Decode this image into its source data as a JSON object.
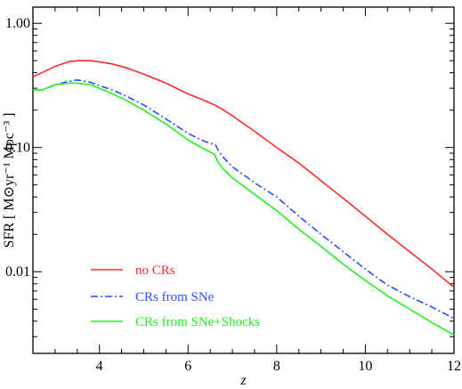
{
  "chart_data": {
    "type": "line",
    "title": "",
    "xlabel": "z",
    "ylabel": "SFR  [ M⊙yr⁻¹ Mpc⁻³ ]",
    "xlim": [
      2.5,
      12
    ],
    "ylim": [
      0.0022,
      1.35
    ],
    "y_scale": "log",
    "grid": false,
    "legend_position": "bottom-left",
    "x_ticks": [
      4,
      6,
      8,
      10,
      12
    ],
    "x_tick_labels": [
      "4",
      "6",
      "8",
      "10",
      "12"
    ],
    "y_ticks": [
      0.01,
      0.1,
      1.0
    ],
    "y_tick_labels": [
      "0.01",
      "0.10",
      "1.00"
    ],
    "series": [
      {
        "name": "no CRs",
        "color": "#ff2a2a",
        "dash": "solid",
        "x": [
          2.5,
          2.7,
          3.0,
          3.3,
          3.5,
          3.8,
          4.0,
          4.3,
          4.6,
          5.0,
          5.5,
          6.0,
          6.3,
          6.6,
          6.8,
          7.0,
          7.5,
          8.0,
          8.5,
          9.0,
          9.5,
          10.0,
          10.5,
          11.0,
          11.5,
          12.0
        ],
        "y": [
          0.37,
          0.4,
          0.45,
          0.49,
          0.5,
          0.5,
          0.49,
          0.47,
          0.44,
          0.39,
          0.33,
          0.27,
          0.245,
          0.22,
          0.2,
          0.18,
          0.135,
          0.1,
          0.075,
          0.054,
          0.039,
          0.028,
          0.02,
          0.0145,
          0.0105,
          0.0075
        ]
      },
      {
        "name": "CRs from SNe",
        "color": "#2a4fff",
        "dash": "dashdot",
        "x": [
          2.5,
          2.7,
          3.0,
          3.3,
          3.5,
          3.8,
          4.0,
          4.3,
          4.6,
          5.0,
          5.5,
          6.0,
          6.3,
          6.5,
          6.62,
          6.68,
          6.8,
          7.0,
          7.5,
          8.0,
          8.5,
          9.0,
          9.5,
          10.0,
          10.5,
          11.0,
          11.5,
          12.0
        ],
        "y": [
          0.29,
          0.29,
          0.32,
          0.34,
          0.35,
          0.335,
          0.315,
          0.29,
          0.26,
          0.22,
          0.17,
          0.13,
          0.115,
          0.108,
          0.105,
          0.095,
          0.083,
          0.07,
          0.052,
          0.04,
          0.028,
          0.02,
          0.0145,
          0.0105,
          0.0078,
          0.0063,
          0.0052,
          0.0042
        ]
      },
      {
        "name": "CRs from SNe+Shocks",
        "color": "#22ee22",
        "dash": "solid",
        "x": [
          2.5,
          2.7,
          3.0,
          3.3,
          3.5,
          3.8,
          4.0,
          4.3,
          4.6,
          5.0,
          5.5,
          6.0,
          6.3,
          6.5,
          6.6,
          6.65,
          6.7,
          6.8,
          7.0,
          7.5,
          8.0,
          8.5,
          9.0,
          9.5,
          10.0,
          10.5,
          11.0,
          11.5,
          12.0
        ],
        "y": [
          0.29,
          0.29,
          0.32,
          0.33,
          0.33,
          0.32,
          0.3,
          0.27,
          0.24,
          0.2,
          0.155,
          0.115,
          0.1,
          0.092,
          0.088,
          0.08,
          0.074,
          0.067,
          0.057,
          0.042,
          0.031,
          0.022,
          0.016,
          0.0115,
          0.0085,
          0.0064,
          0.005,
          0.0039,
          0.0031
        ]
      }
    ]
  }
}
